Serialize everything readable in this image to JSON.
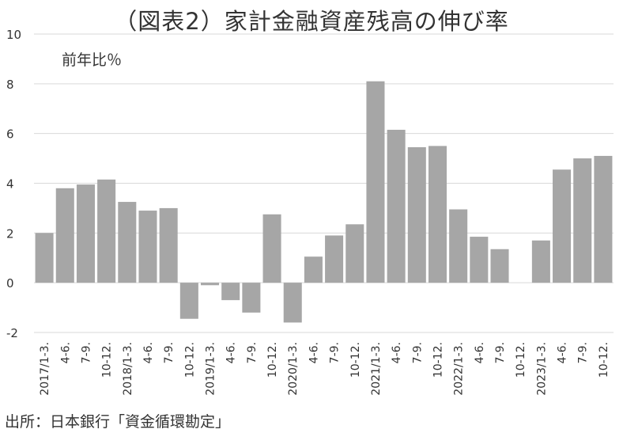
{
  "chart_data": {
    "type": "bar",
    "title": "（図表2）家計金融資産残高の伸び率",
    "ylabel": "前年比％",
    "source": "出所：日本銀行「資金循環勘定」",
    "ylim": [
      -2,
      10
    ],
    "yticks": [
      "10",
      "8",
      "6",
      "4",
      "2",
      "0",
      "-2"
    ],
    "categories": [
      "2017/1-3.",
      "4-6.",
      "7-9.",
      "10-12.",
      "2018/1-3.",
      "4-6.",
      "7-9.",
      "10-12.",
      "2019/1-3.",
      "4-6.",
      "7-9.",
      "10-12.",
      "2020/1-3.",
      "4-6.",
      "7-9.",
      "10-12.",
      "2021/1-3.",
      "4-6.",
      "7-9.",
      "10-12.",
      "2022/1-3.",
      "4-6.",
      "7-9.",
      "10-12.",
      "2023/1-3.",
      "4-6.",
      "7-9.",
      "10-12."
    ],
    "values": [
      2.0,
      3.8,
      3.95,
      4.15,
      3.25,
      2.9,
      3.0,
      -1.45,
      -0.1,
      -0.7,
      -1.2,
      2.75,
      -1.6,
      1.05,
      1.9,
      2.35,
      8.1,
      6.15,
      5.45,
      5.5,
      2.95,
      1.85,
      1.35,
      0.0,
      1.7,
      4.55,
      5.0,
      5.1
    ],
    "colors": {
      "bar": "#a6a6a6",
      "grid": "#d9d9d9",
      "text": "#333333"
    },
    "grid": true,
    "legend": "none"
  }
}
